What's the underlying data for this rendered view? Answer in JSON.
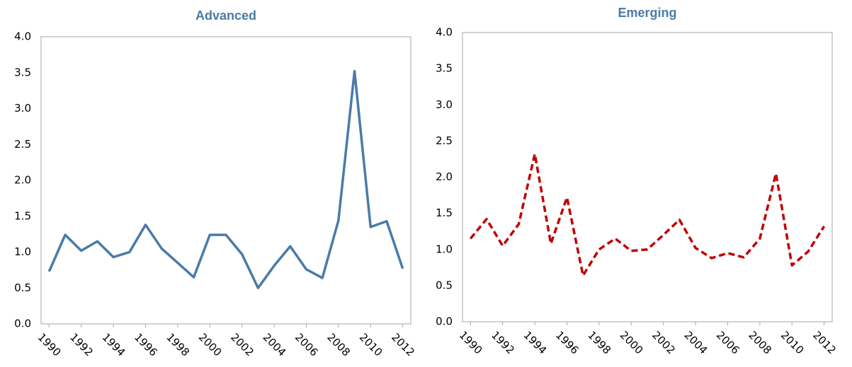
{
  "chart_data": [
    {
      "type": "line",
      "title": "Advanced",
      "x": [
        1990,
        1991,
        1992,
        1993,
        1994,
        1995,
        1996,
        1997,
        1998,
        1999,
        2000,
        2001,
        2002,
        2003,
        2004,
        2005,
        2006,
        2007,
        2008,
        2009,
        2010,
        2011,
        2012
      ],
      "series": [
        {
          "color": "#4a7ba7",
          "line_style": "solid",
          "values": [
            0.73,
            1.24,
            1.02,
            1.15,
            0.93,
            1.0,
            1.38,
            1.05,
            0.85,
            0.65,
            1.24,
            1.24,
            0.97,
            0.5,
            0.81,
            1.08,
            0.76,
            0.64,
            1.44,
            3.52,
            1.35,
            1.43,
            0.77
          ]
        }
      ],
      "xlim": [
        1989.5,
        2012.5
      ],
      "xticks": [
        1990,
        1992,
        1994,
        1996,
        1998,
        2000,
        2002,
        2004,
        2006,
        2008,
        2010,
        2012
      ],
      "ylim": [
        0,
        4
      ],
      "yticks": [
        {
          "value": 0,
          "label": "0.0"
        },
        0.5,
        {
          "value": 1,
          "label": "1.0"
        },
        1.5,
        {
          "value": 2,
          "label": "2.0"
        },
        2.5,
        {
          "value": 3,
          "label": "3.0"
        },
        3.5,
        {
          "value": 4,
          "label": "4.0"
        }
      ],
      "grid": false
    },
    {
      "type": "line",
      "title": "Emerging",
      "x": [
        1990,
        1991,
        1992,
        1993,
        1994,
        1995,
        1996,
        1997,
        1998,
        1999,
        2000,
        2001,
        2002,
        2003,
        2004,
        2005,
        2006,
        2007,
        2008,
        2009,
        2010,
        2011,
        2012
      ],
      "series": [
        {
          "color": "#c00000",
          "line_style": "dashed",
          "values": [
            1.15,
            1.42,
            1.05,
            1.35,
            2.32,
            1.08,
            1.72,
            0.64,
            1.0,
            1.15,
            0.98,
            1.0,
            1.2,
            1.41,
            1.02,
            0.88,
            0.95,
            0.89,
            1.15,
            2.05,
            0.78,
            0.97,
            1.32
          ]
        }
      ],
      "xlim": [
        1989.5,
        2012.5
      ],
      "xticks": [
        1990,
        1992,
        1994,
        1996,
        1998,
        2000,
        2002,
        2004,
        2006,
        2008,
        2010,
        2012
      ],
      "ylim": [
        0,
        4
      ],
      "yticks": [
        {
          "value": 0,
          "label": "0.0"
        },
        0.5,
        {
          "value": 1,
          "label": "1.0"
        },
        1.5,
        {
          "value": 2,
          "label": "2.0"
        },
        2.5,
        {
          "value": 3,
          "label": "3.0"
        },
        3.5,
        {
          "value": 4,
          "label": "4.0"
        }
      ],
      "grid": false
    }
  ]
}
